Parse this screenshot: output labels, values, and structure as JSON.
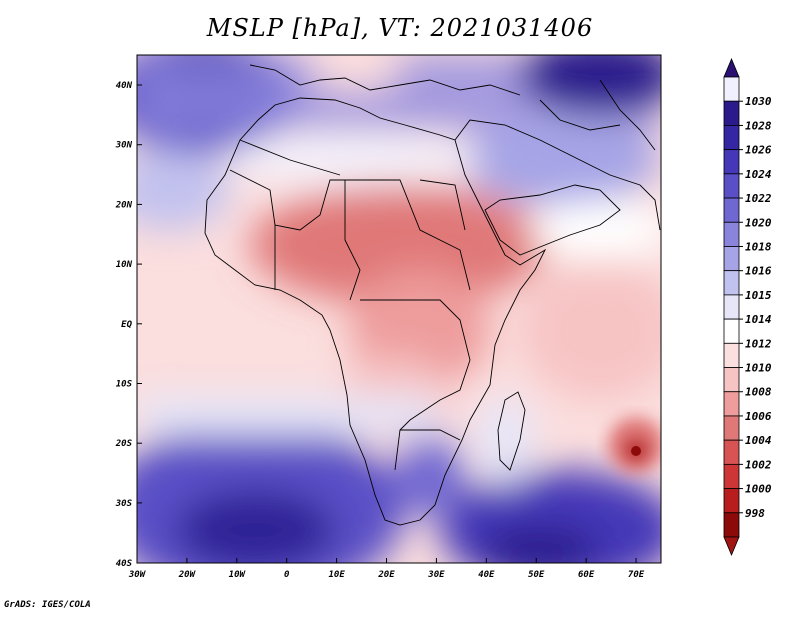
{
  "title": "MSLP [hPa], VT: 2021031406",
  "credit": "GrADS: IGES/COLA",
  "axes": {
    "lon_labels": [
      "30W",
      "20W",
      "10W",
      "0",
      "10E",
      "20E",
      "30E",
      "40E",
      "50E",
      "60E",
      "70E"
    ],
    "lat_labels": [
      "40N",
      "30N",
      "20N",
      "10N",
      "EQ",
      "10S",
      "20S",
      "30S",
      "40S"
    ]
  },
  "colorbar": {
    "levels": [
      "1030",
      "1028",
      "1026",
      "1024",
      "1022",
      "1020",
      "1018",
      "1016",
      "1015",
      "1014",
      "1012",
      "1010",
      "1008",
      "1006",
      "1004",
      "1002",
      "1000",
      "998"
    ],
    "colors": [
      "#f0f0ff",
      "#2a1a8c",
      "#3527a4",
      "#4537b8",
      "#5a4fc6",
      "#7068d2",
      "#8a84dc",
      "#a6a4e6",
      "#c2c2ef",
      "#e6e6f8",
      "#ffffff",
      "#fce0e0",
      "#f7c4c4",
      "#ee9c9c",
      "#e07878",
      "#d85454",
      "#cc3636",
      "#b81e1e",
      "#8c0a0a"
    ],
    "top_color": "#2a1070",
    "bottom_color": "#a01414"
  },
  "features": {
    "low_center": "Low pressure center near 21S 70E",
    "highs": [
      "North Atlantic high",
      "South Atlantic high",
      "South Indian Ocean high",
      "Asian high"
    ]
  }
}
